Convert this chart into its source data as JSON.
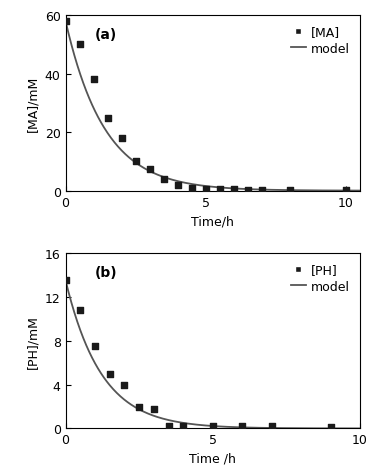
{
  "panel_a": {
    "label": "(a)",
    "scatter_x": [
      0,
      0.5,
      1.0,
      1.5,
      2.0,
      2.5,
      3.0,
      3.5,
      4.0,
      4.5,
      5.0,
      5.5,
      6.0,
      6.5,
      7.0,
      8.0,
      10.0
    ],
    "scatter_y": [
      58,
      50,
      38,
      25,
      18,
      10,
      7.5,
      4.0,
      2.0,
      1.0,
      0.5,
      0.5,
      0.5,
      0.3,
      0.3,
      0.2,
      0.1
    ],
    "model_y0": 58,
    "model_k": 0.72,
    "ylabel": "[MA]/mM",
    "ylim": [
      0,
      60
    ],
    "yticks": [
      0,
      20,
      40,
      60
    ],
    "xlim": [
      0,
      10.5
    ],
    "xticks": [
      0,
      5,
      10
    ],
    "xlabel": "Time/h",
    "legend_label_scatter": "[MA]",
    "legend_label_line": "model"
  },
  "panel_b": {
    "label": "(b)",
    "scatter_x": [
      0,
      0.5,
      1.0,
      1.5,
      2.0,
      2.5,
      3.0,
      3.5,
      4.0,
      5.0,
      6.0,
      7.0,
      9.0
    ],
    "scatter_y": [
      13.5,
      10.8,
      7.5,
      5.0,
      4.0,
      2.0,
      1.8,
      0.2,
      0.2,
      0.2,
      0.2,
      0.2,
      0.1
    ],
    "model_y0": 13.5,
    "model_k": 0.82,
    "ylabel": "[PH]/mM",
    "ylim": [
      0,
      16
    ],
    "yticks": [
      0,
      4,
      8,
      12,
      16
    ],
    "xlim": [
      0,
      10.0
    ],
    "xticks": [
      0,
      5,
      10
    ],
    "xlabel": "Time /h",
    "legend_label_scatter": "[PH]",
    "legend_label_line": "model"
  },
  "figure_bg": "#ffffff",
  "scatter_color": "#1a1a1a",
  "line_color": "#555555",
  "marker": "s",
  "marker_size": 5,
  "line_width": 1.3,
  "font_size": 9,
  "label_fontsize": 10
}
